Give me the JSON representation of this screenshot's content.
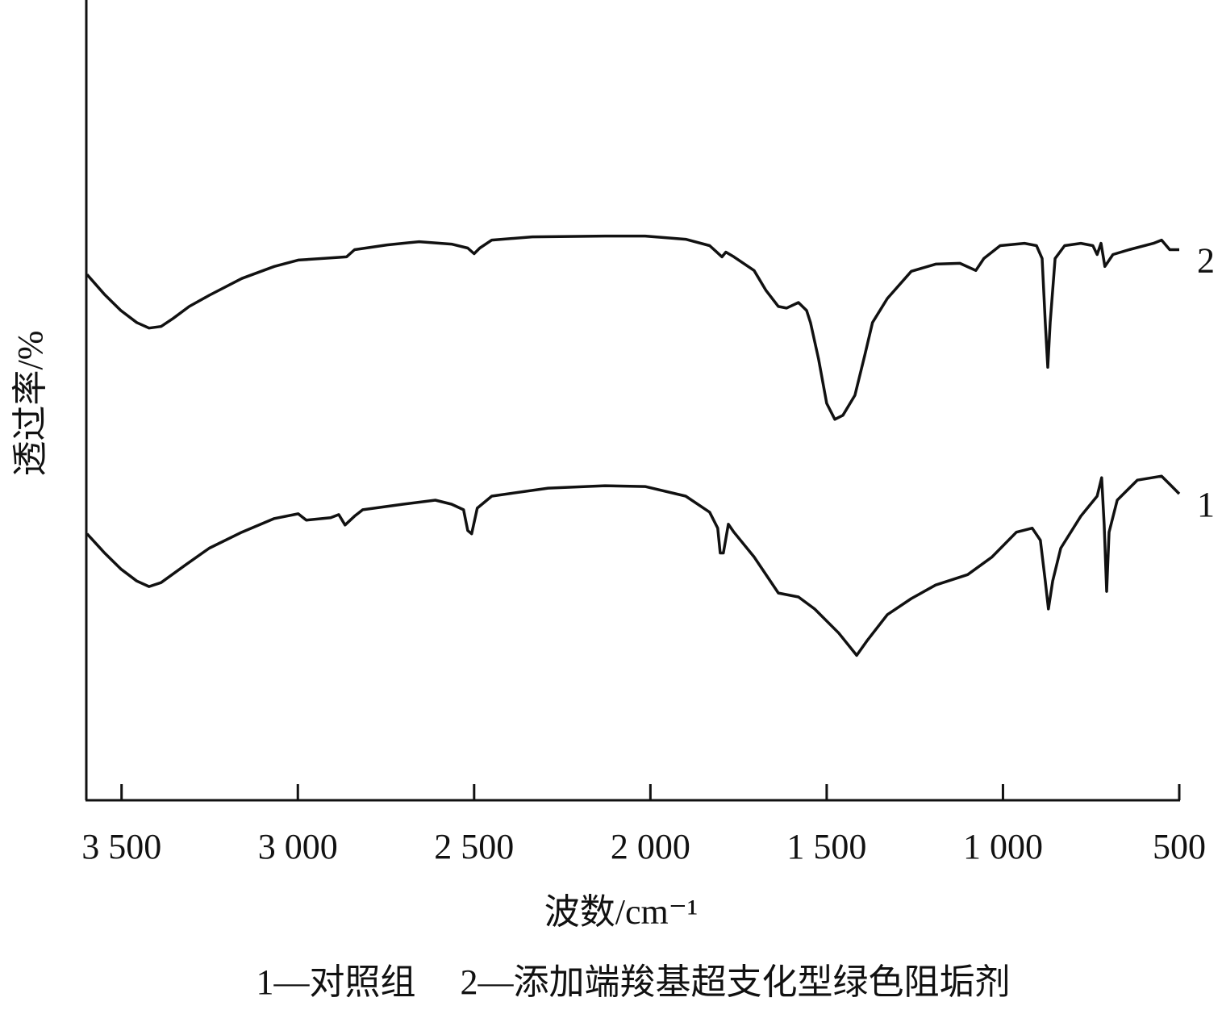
{
  "chart_data": {
    "type": "line",
    "x_label": "波数/cm⁻¹",
    "y_label": "透过率/%",
    "caption": "1—对照组　 2—添加端羧基超支化型绿色阻垢剂",
    "xlim": [
      3600,
      500
    ],
    "xticks": [
      {
        "value": 3500,
        "label": "3 500"
      },
      {
        "value": 3000,
        "label": "3 000"
      },
      {
        "value": 2500,
        "label": "2 500"
      },
      {
        "value": 2000,
        "label": "2 000"
      },
      {
        "value": 1500,
        "label": "1 500"
      },
      {
        "value": 1000,
        "label": "1 000"
      },
      500
    ],
    "ylim": [
      0,
      100
    ],
    "series": [
      {
        "name": "1",
        "color": "#111111",
        "x": [
          3598,
          3548,
          3502,
          3457,
          3422,
          3388,
          3319,
          3251,
          3159,
          3067,
          2999,
          2976,
          2907,
          2884,
          2866,
          2839,
          2816,
          2701,
          2610,
          2564,
          2530,
          2518,
          2507,
          2491,
          2450,
          2290,
          2129,
          2015,
          1900,
          1832,
          1809,
          1802,
          1793,
          1779,
          1763,
          1706,
          1637,
          1580,
          1534,
          1466,
          1415,
          1386,
          1328,
          1260,
          1191,
          1100,
          1031,
          962,
          917,
          894,
          880,
          871,
          859,
          836,
          779,
          733,
          720,
          713,
          706,
          699,
          676,
          619,
          550,
          527,
          500
        ],
        "values": [
          33.3,
          30.9,
          28.9,
          27.4,
          26.7,
          27.2,
          29.4,
          31.5,
          33.5,
          35.2,
          35.8,
          35.0,
          35.3,
          35.7,
          34.4,
          35.5,
          36.3,
          37.0,
          37.5,
          37.0,
          36.3,
          33.7,
          33.3,
          36.5,
          38.0,
          39.0,
          39.3,
          39.2,
          38.0,
          36.0,
          34.0,
          30.9,
          30.9,
          34.5,
          33.5,
          30.4,
          25.9,
          25.4,
          23.9,
          20.9,
          18.1,
          19.9,
          23.2,
          25.2,
          26.9,
          28.2,
          30.4,
          33.5,
          34.0,
          32.5,
          27.4,
          23.9,
          27.4,
          31.5,
          35.5,
          38.0,
          40.3,
          34.5,
          26.1,
          33.5,
          37.5,
          40.0,
          40.5,
          39.5,
          38.3
        ]
      },
      {
        "name": "2",
        "color": "#111111",
        "x": [
          3598,
          3548,
          3502,
          3457,
          3422,
          3388,
          3354,
          3308,
          3251,
          3159,
          3067,
          2999,
          2930,
          2862,
          2839,
          2747,
          2656,
          2564,
          2518,
          2500,
          2484,
          2450,
          2335,
          2129,
          2015,
          1900,
          1832,
          1797,
          1786,
          1763,
          1706,
          1672,
          1637,
          1614,
          1580,
          1557,
          1546,
          1523,
          1500,
          1477,
          1454,
          1420,
          1392,
          1370,
          1328,
          1260,
          1191,
          1122,
          1077,
          1054,
          1008,
          939,
          905,
          889,
          880,
          873,
          866,
          852,
          825,
          779,
          745,
          733,
          722,
          711,
          688,
          642,
          573,
          550,
          527,
          500
        ],
        "values": [
          65.7,
          63.2,
          61.2,
          59.7,
          59.0,
          59.2,
          60.2,
          61.7,
          63.1,
          65.2,
          66.7,
          67.5,
          67.7,
          67.9,
          68.8,
          69.4,
          69.8,
          69.5,
          69.0,
          68.3,
          69.0,
          70.0,
          70.4,
          70.5,
          70.5,
          70.1,
          69.3,
          67.9,
          68.5,
          67.9,
          66.2,
          63.7,
          61.7,
          61.5,
          62.2,
          61.2,
          59.7,
          55.1,
          49.6,
          47.6,
          48.1,
          50.6,
          55.6,
          59.7,
          62.7,
          66.1,
          67.0,
          67.1,
          66.2,
          67.7,
          69.3,
          69.6,
          69.3,
          67.7,
          59.7,
          54.1,
          59.7,
          67.7,
          69.3,
          69.6,
          69.3,
          68.2,
          69.6,
          66.7,
          68.2,
          68.8,
          69.6,
          70.0,
          68.8,
          68.8
        ]
      }
    ]
  }
}
